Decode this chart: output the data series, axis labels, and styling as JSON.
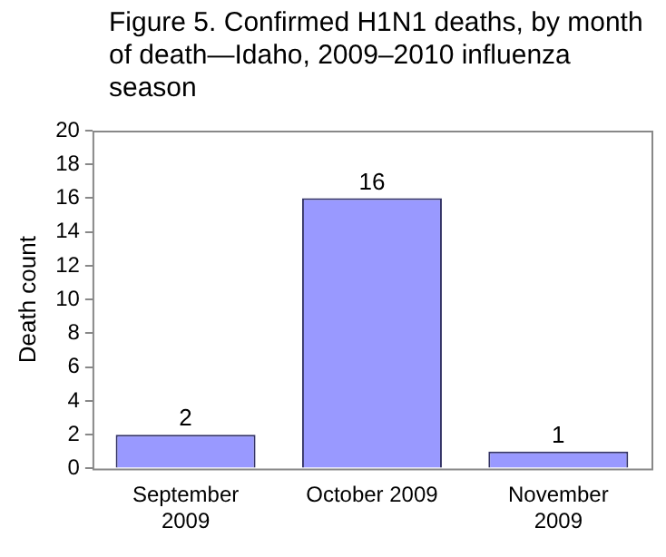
{
  "chart_data": {
    "type": "bar",
    "title": "Figure 5. Confirmed H1N1 deaths, by month of death—Idaho, 2009–2010 influenza season",
    "ylabel": "Death count",
    "categories": [
      "September 2009",
      "October 2009",
      "November 2009"
    ],
    "values": [
      2,
      16,
      1
    ],
    "color": "#9999ff",
    "ylim": [
      0,
      20
    ],
    "yticks": [
      0,
      2,
      4,
      6,
      8,
      10,
      12,
      14,
      16,
      18,
      20
    ],
    "data_labels": true,
    "grid": false,
    "legend": false
  }
}
